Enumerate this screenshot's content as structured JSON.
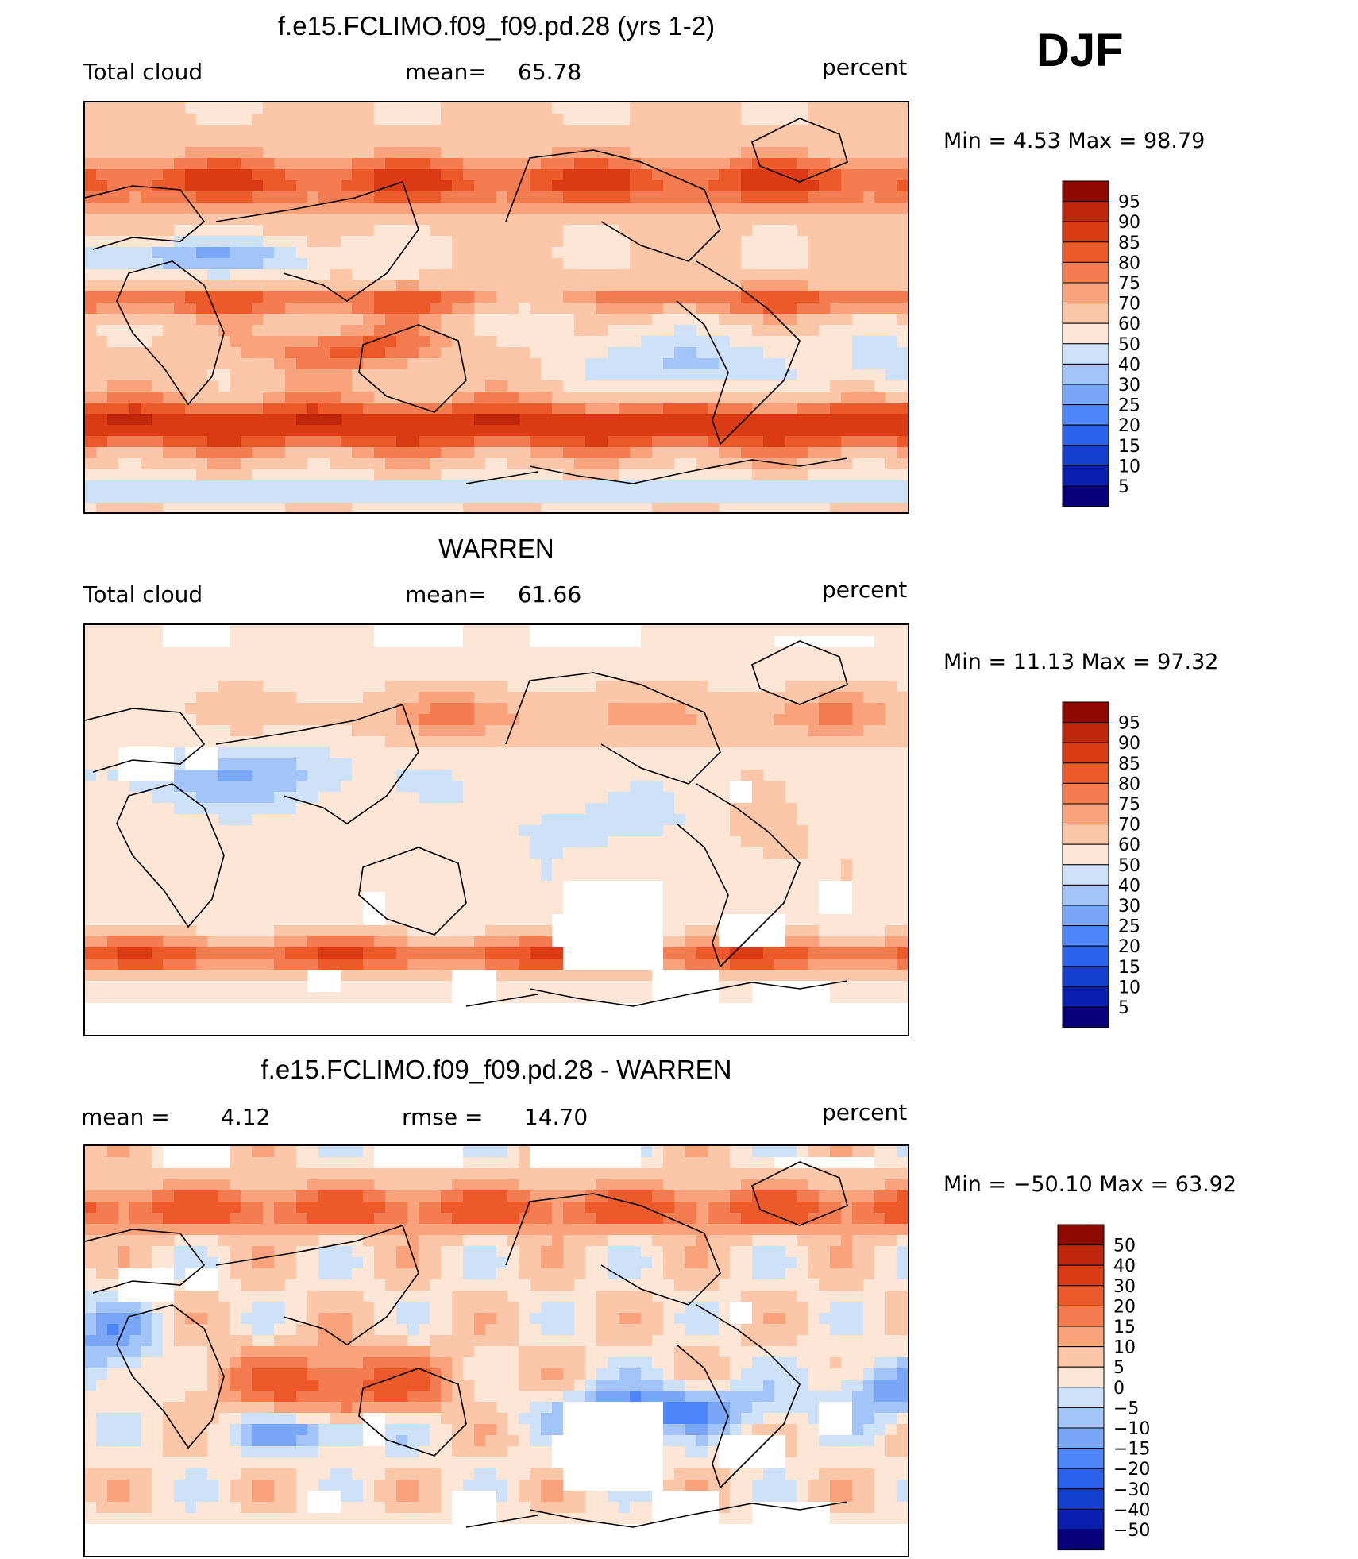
{
  "header": {
    "season": "DJF"
  },
  "colors": {
    "abs_scale": [
      "#08007a",
      "#0a1fb0",
      "#1440d0",
      "#2a62ee",
      "#4d86f8",
      "#79a6f7",
      "#a3c4f8",
      "#cde1f9",
      "#fde6d6",
      "#fcc7a8",
      "#f9a27c",
      "#f47c50",
      "#ec5a2c",
      "#da3b15",
      "#bf260c",
      "#8e0a00"
    ],
    "diff_scale": [
      "#08007a",
      "#0a1fb0",
      "#1440d0",
      "#2a62ee",
      "#4d86f8",
      "#79a6f7",
      "#a3c4f8",
      "#cde1f9",
      "#fde6d6",
      "#fcc7a8",
      "#f9a27c",
      "#f47c50",
      "#ec5a2c",
      "#da3b15",
      "#bf260c",
      "#8e0a00"
    ],
    "missing": "#ffffff",
    "coast": "#000000"
  },
  "panels": [
    {
      "title": "f.e15.FCLIMO.f09_f09.pd.28 (yrs 1-2)",
      "left_label": "Total cloud",
      "mid_label": "mean=",
      "mid_value": "65.78",
      "units": "percent",
      "minmax_text": "Min =    4.53 Max =   98.79",
      "colorbar_labels": [
        "95",
        "90",
        "85",
        "80",
        "75",
        "70",
        "60",
        "50",
        "40",
        "30",
        "25",
        "20",
        "15",
        "10",
        "5"
      ]
    },
    {
      "title": "WARREN",
      "left_label": "Total cloud",
      "mid_label": "mean=",
      "mid_value": "61.66",
      "units": "percent",
      "minmax_text": "Min =  11.13 Max =   97.32",
      "colorbar_labels": [
        "95",
        "90",
        "85",
        "80",
        "75",
        "70",
        "60",
        "50",
        "40",
        "30",
        "25",
        "20",
        "15",
        "10",
        "5"
      ]
    },
    {
      "title": "f.e15.FCLIMO.f09_f09.pd.28 - WARREN",
      "left_label": "mean =",
      "left_value": "4.12",
      "mid_label": "rmse =",
      "mid_value": "14.70",
      "units": "percent",
      "minmax_text": "Min = −50.10 Max =   63.92",
      "colorbar_labels": [
        "50",
        "40",
        "30",
        "20",
        "15",
        "10",
        "5",
        "0",
        "−5",
        "−10",
        "−15",
        "−20",
        "−30",
        "−40",
        "−50"
      ]
    }
  ],
  "chart_data": [
    {
      "type": "heatmap",
      "title": "f.e15.FCLIMO.f09_f09.pd.28 (yrs 1-2)",
      "variable": "Total cloud",
      "units": "percent",
      "mean": 65.78,
      "min": 4.53,
      "max": 98.79,
      "contour_levels": [
        5,
        10,
        15,
        20,
        25,
        30,
        40,
        50,
        60,
        70,
        75,
        80,
        85,
        90,
        95
      ],
      "projection": "cylindrical equidistant, Pacific-centered",
      "grid": false
    },
    {
      "type": "heatmap",
      "title": "WARREN",
      "variable": "Total cloud",
      "units": "percent",
      "mean": 61.66,
      "min": 11.13,
      "max": 97.32,
      "contour_levels": [
        5,
        10,
        15,
        20,
        25,
        30,
        40,
        50,
        60,
        70,
        75,
        80,
        85,
        90,
        95
      ],
      "projection": "cylindrical equidistant, Pacific-centered",
      "grid": false
    },
    {
      "type": "heatmap",
      "title": "f.e15.FCLIMO.f09_f09.pd.28 - WARREN",
      "units": "percent",
      "mean": 4.12,
      "rmse": 14.7,
      "min": -50.1,
      "max": 63.92,
      "contour_levels": [
        -50,
        -40,
        -30,
        -20,
        -15,
        -10,
        -5,
        0,
        5,
        10,
        15,
        20,
        30,
        40,
        50
      ],
      "projection": "cylindrical equidistant, Pacific-centered",
      "grid": false
    }
  ]
}
